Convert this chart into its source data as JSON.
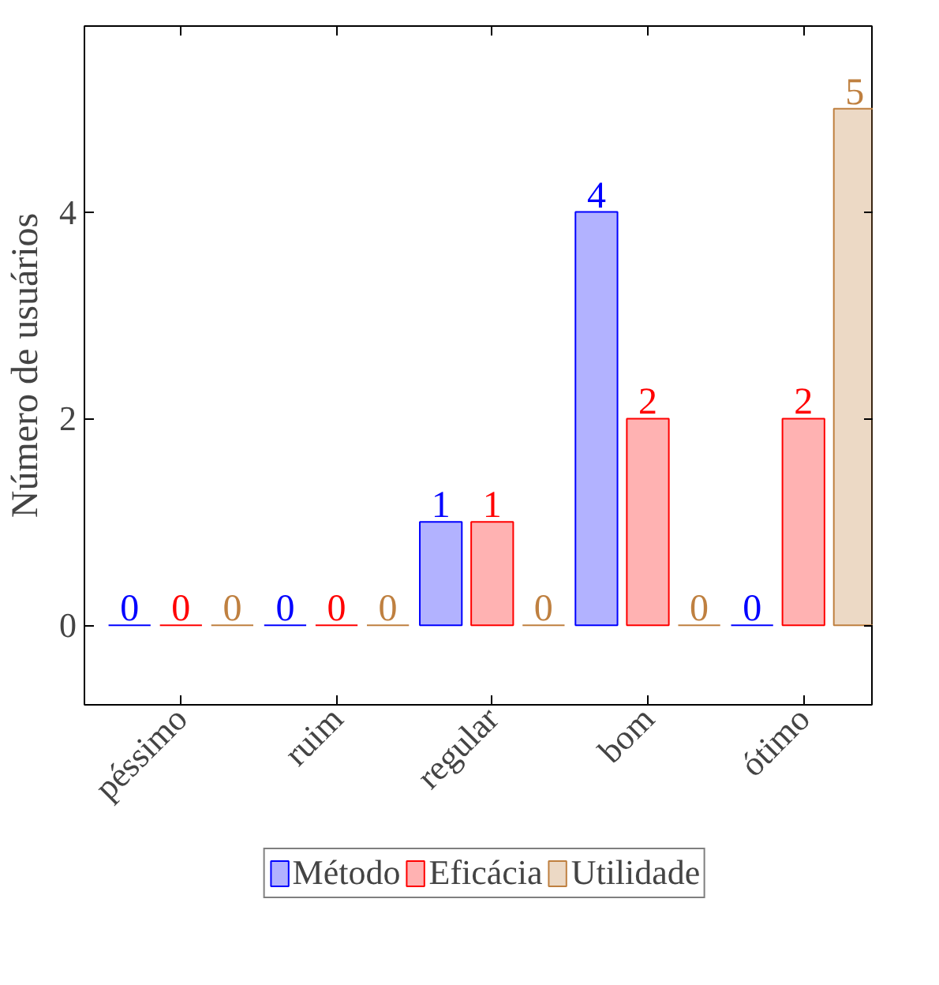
{
  "chart_data": {
    "type": "bar",
    "ylabel": "Número de usuários",
    "categories": [
      "péssimo",
      "ruim",
      "regular",
      "bom",
      "ótimo"
    ],
    "series": [
      {
        "name": "Método",
        "color": "#0000ff",
        "values": [
          0,
          0,
          1,
          4,
          0
        ]
      },
      {
        "name": "Eficácia",
        "color": "#ff0000",
        "values": [
          0,
          0,
          1,
          2,
          2
        ]
      },
      {
        "name": "Utilidade",
        "color": "#bf8040",
        "values": [
          0,
          0,
          0,
          0,
          5
        ]
      }
    ],
    "ylim": [
      -0.77,
      5.8
    ],
    "yticks": [
      0,
      2,
      4
    ],
    "data_labels": true,
    "legend": "bottom",
    "grid": false
  }
}
